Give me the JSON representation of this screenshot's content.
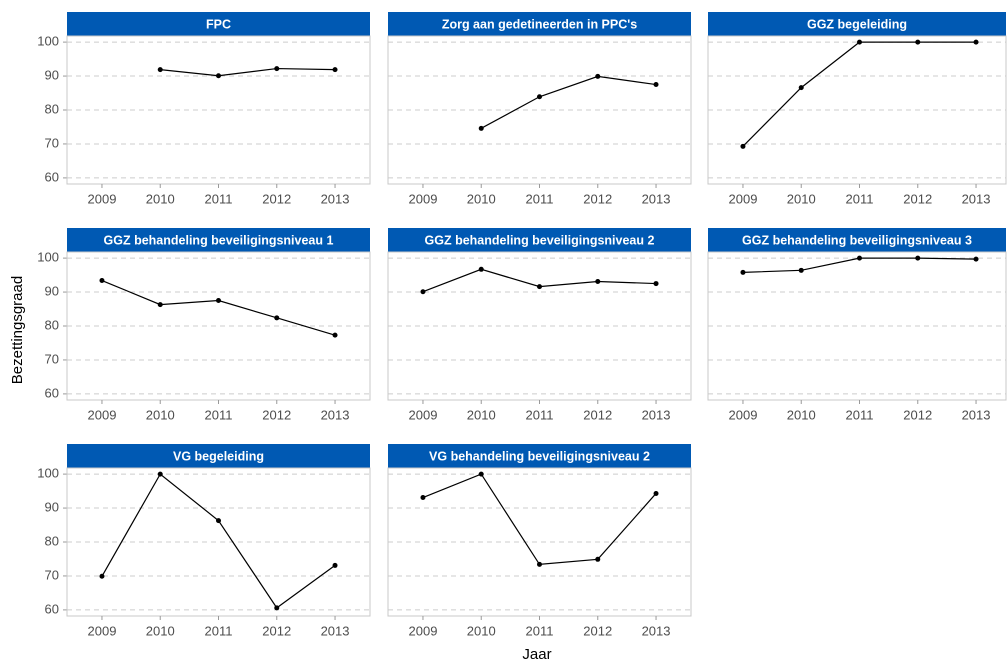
{
  "xlabel": "Jaar",
  "ylabel": "Bezettingsgraad",
  "chart_data": [
    {
      "type": "line",
      "title": "FPC",
      "categories": [
        "2009",
        "2010",
        "2011",
        "2012",
        "2013"
      ],
      "values": [
        null,
        91.9,
        90.1,
        92.2,
        91.9
      ],
      "color": "#000000",
      "ylim": [
        58.2,
        101.8
      ],
      "yticks": [
        60,
        70,
        80,
        90,
        100
      ],
      "grid": true
    },
    {
      "type": "line",
      "title": "Zorg aan gedetineerden in PPC's",
      "categories": [
        "2009",
        "2010",
        "2011",
        "2012",
        "2013"
      ],
      "values": [
        null,
        74.6,
        83.9,
        89.9,
        87.5
      ],
      "color": "#000000",
      "ylim": [
        58.2,
        101.8
      ],
      "yticks": [
        60,
        70,
        80,
        90,
        100
      ],
      "grid": true
    },
    {
      "type": "line",
      "title": "GGZ begeleiding",
      "categories": [
        "2009",
        "2010",
        "2011",
        "2012",
        "2013"
      ],
      "values": [
        69.3,
        86.6,
        100,
        100,
        100
      ],
      "color": "#000000",
      "ylim": [
        58.2,
        101.8
      ],
      "yticks": [
        60,
        70,
        80,
        90,
        100
      ],
      "grid": true
    },
    {
      "type": "line",
      "title": "GGZ behandeling beveiligingsniveau 1",
      "categories": [
        "2009",
        "2010",
        "2011",
        "2012",
        "2013"
      ],
      "values": [
        93.4,
        86.3,
        87.5,
        82.4,
        77.3
      ],
      "color": "#000000",
      "ylim": [
        58.2,
        101.8
      ],
      "yticks": [
        60,
        70,
        80,
        90,
        100
      ],
      "grid": true
    },
    {
      "type": "line",
      "title": "GGZ behandeling beveiligingsniveau 2",
      "categories": [
        "2009",
        "2010",
        "2011",
        "2012",
        "2013"
      ],
      "values": [
        90.1,
        96.7,
        91.6,
        93.1,
        92.5
      ],
      "color": "#000000",
      "ylim": [
        58.2,
        101.8
      ],
      "yticks": [
        60,
        70,
        80,
        90,
        100
      ],
      "grid": true
    },
    {
      "type": "line",
      "title": "GGZ behandeling beveiligingsniveau 3",
      "categories": [
        "2009",
        "2010",
        "2011",
        "2012",
        "2013"
      ],
      "values": [
        95.8,
        96.4,
        100,
        100,
        99.7
      ],
      "color": "#000000",
      "ylim": [
        58.2,
        101.8
      ],
      "yticks": [
        60,
        70,
        80,
        90,
        100
      ],
      "grid": true
    },
    {
      "type": "line",
      "title": "VG begeleiding",
      "categories": [
        "2009",
        "2010",
        "2011",
        "2012",
        "2013"
      ],
      "values": [
        69.9,
        100,
        86.3,
        60.6,
        73.1
      ],
      "color": "#000000",
      "ylim": [
        58.2,
        101.8
      ],
      "yticks": [
        60,
        70,
        80,
        90,
        100
      ],
      "grid": true
    },
    {
      "type": "line",
      "title": "VG behandeling beveiligingsniveau 2",
      "categories": [
        "2009",
        "2010",
        "2011",
        "2012",
        "2013"
      ],
      "values": [
        93.1,
        100,
        73.4,
        74.9,
        94.3
      ],
      "color": "#000000",
      "ylim": [
        58.2,
        101.8
      ],
      "yticks": [
        60,
        70,
        80,
        90,
        100
      ],
      "grid": true
    }
  ]
}
